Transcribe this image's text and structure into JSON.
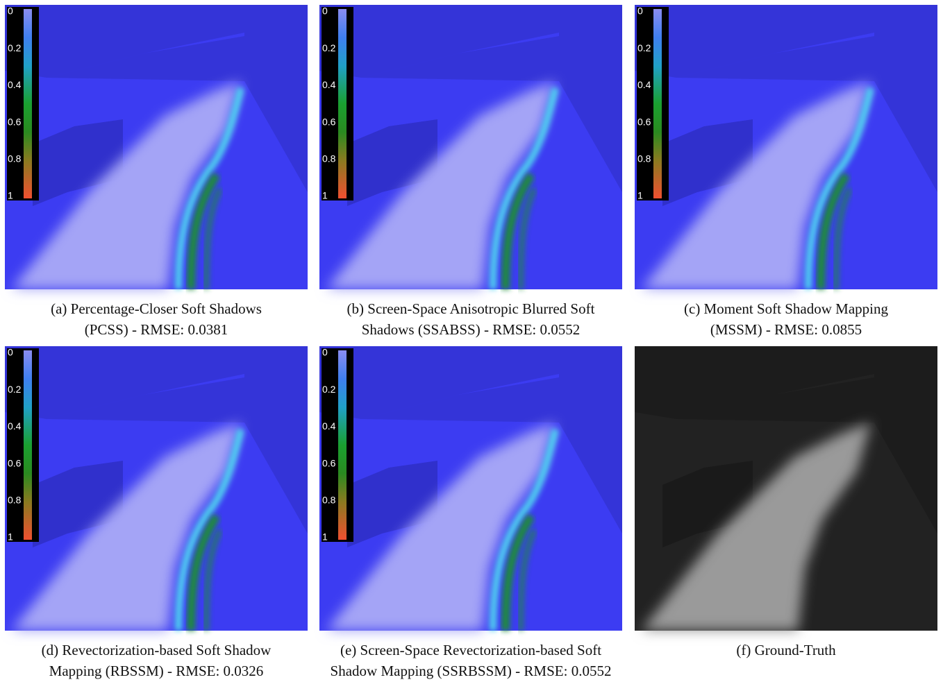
{
  "colorbar_ticks": [
    0,
    0.2,
    0.4,
    0.6,
    0.8,
    1
  ],
  "panels": [
    {
      "caption": [
        "(a) Percentage-Closer Soft Shadows",
        "(PCSS) - RMSE: 0.0381"
      ],
      "colorbar": true,
      "palette": "error"
    },
    {
      "caption": [
        "(b) Screen-Space Anisotropic Blurred Soft",
        "Shadows (SSABSS) - RMSE: 0.0552"
      ],
      "colorbar": true,
      "palette": "error"
    },
    {
      "caption": [
        "(c) Moment Soft Shadow Mapping",
        "(MSSM) - RMSE: 0.0855"
      ],
      "colorbar": true,
      "palette": "error"
    },
    {
      "caption": [
        "(d) Revectorization-based Soft Shadow",
        "Mapping (RBSSM) - RMSE: 0.0326"
      ],
      "colorbar": true,
      "palette": "error"
    },
    {
      "caption": [
        "(e) Screen-Space Revectorization-based Soft",
        "Shadow Mapping (SSRBSSM) - RMSE: 0.0552"
      ],
      "colorbar": true,
      "palette": "error"
    },
    {
      "caption": [
        "(f) Ground-Truth"
      ],
      "colorbar": false,
      "palette": "gray"
    }
  ]
}
